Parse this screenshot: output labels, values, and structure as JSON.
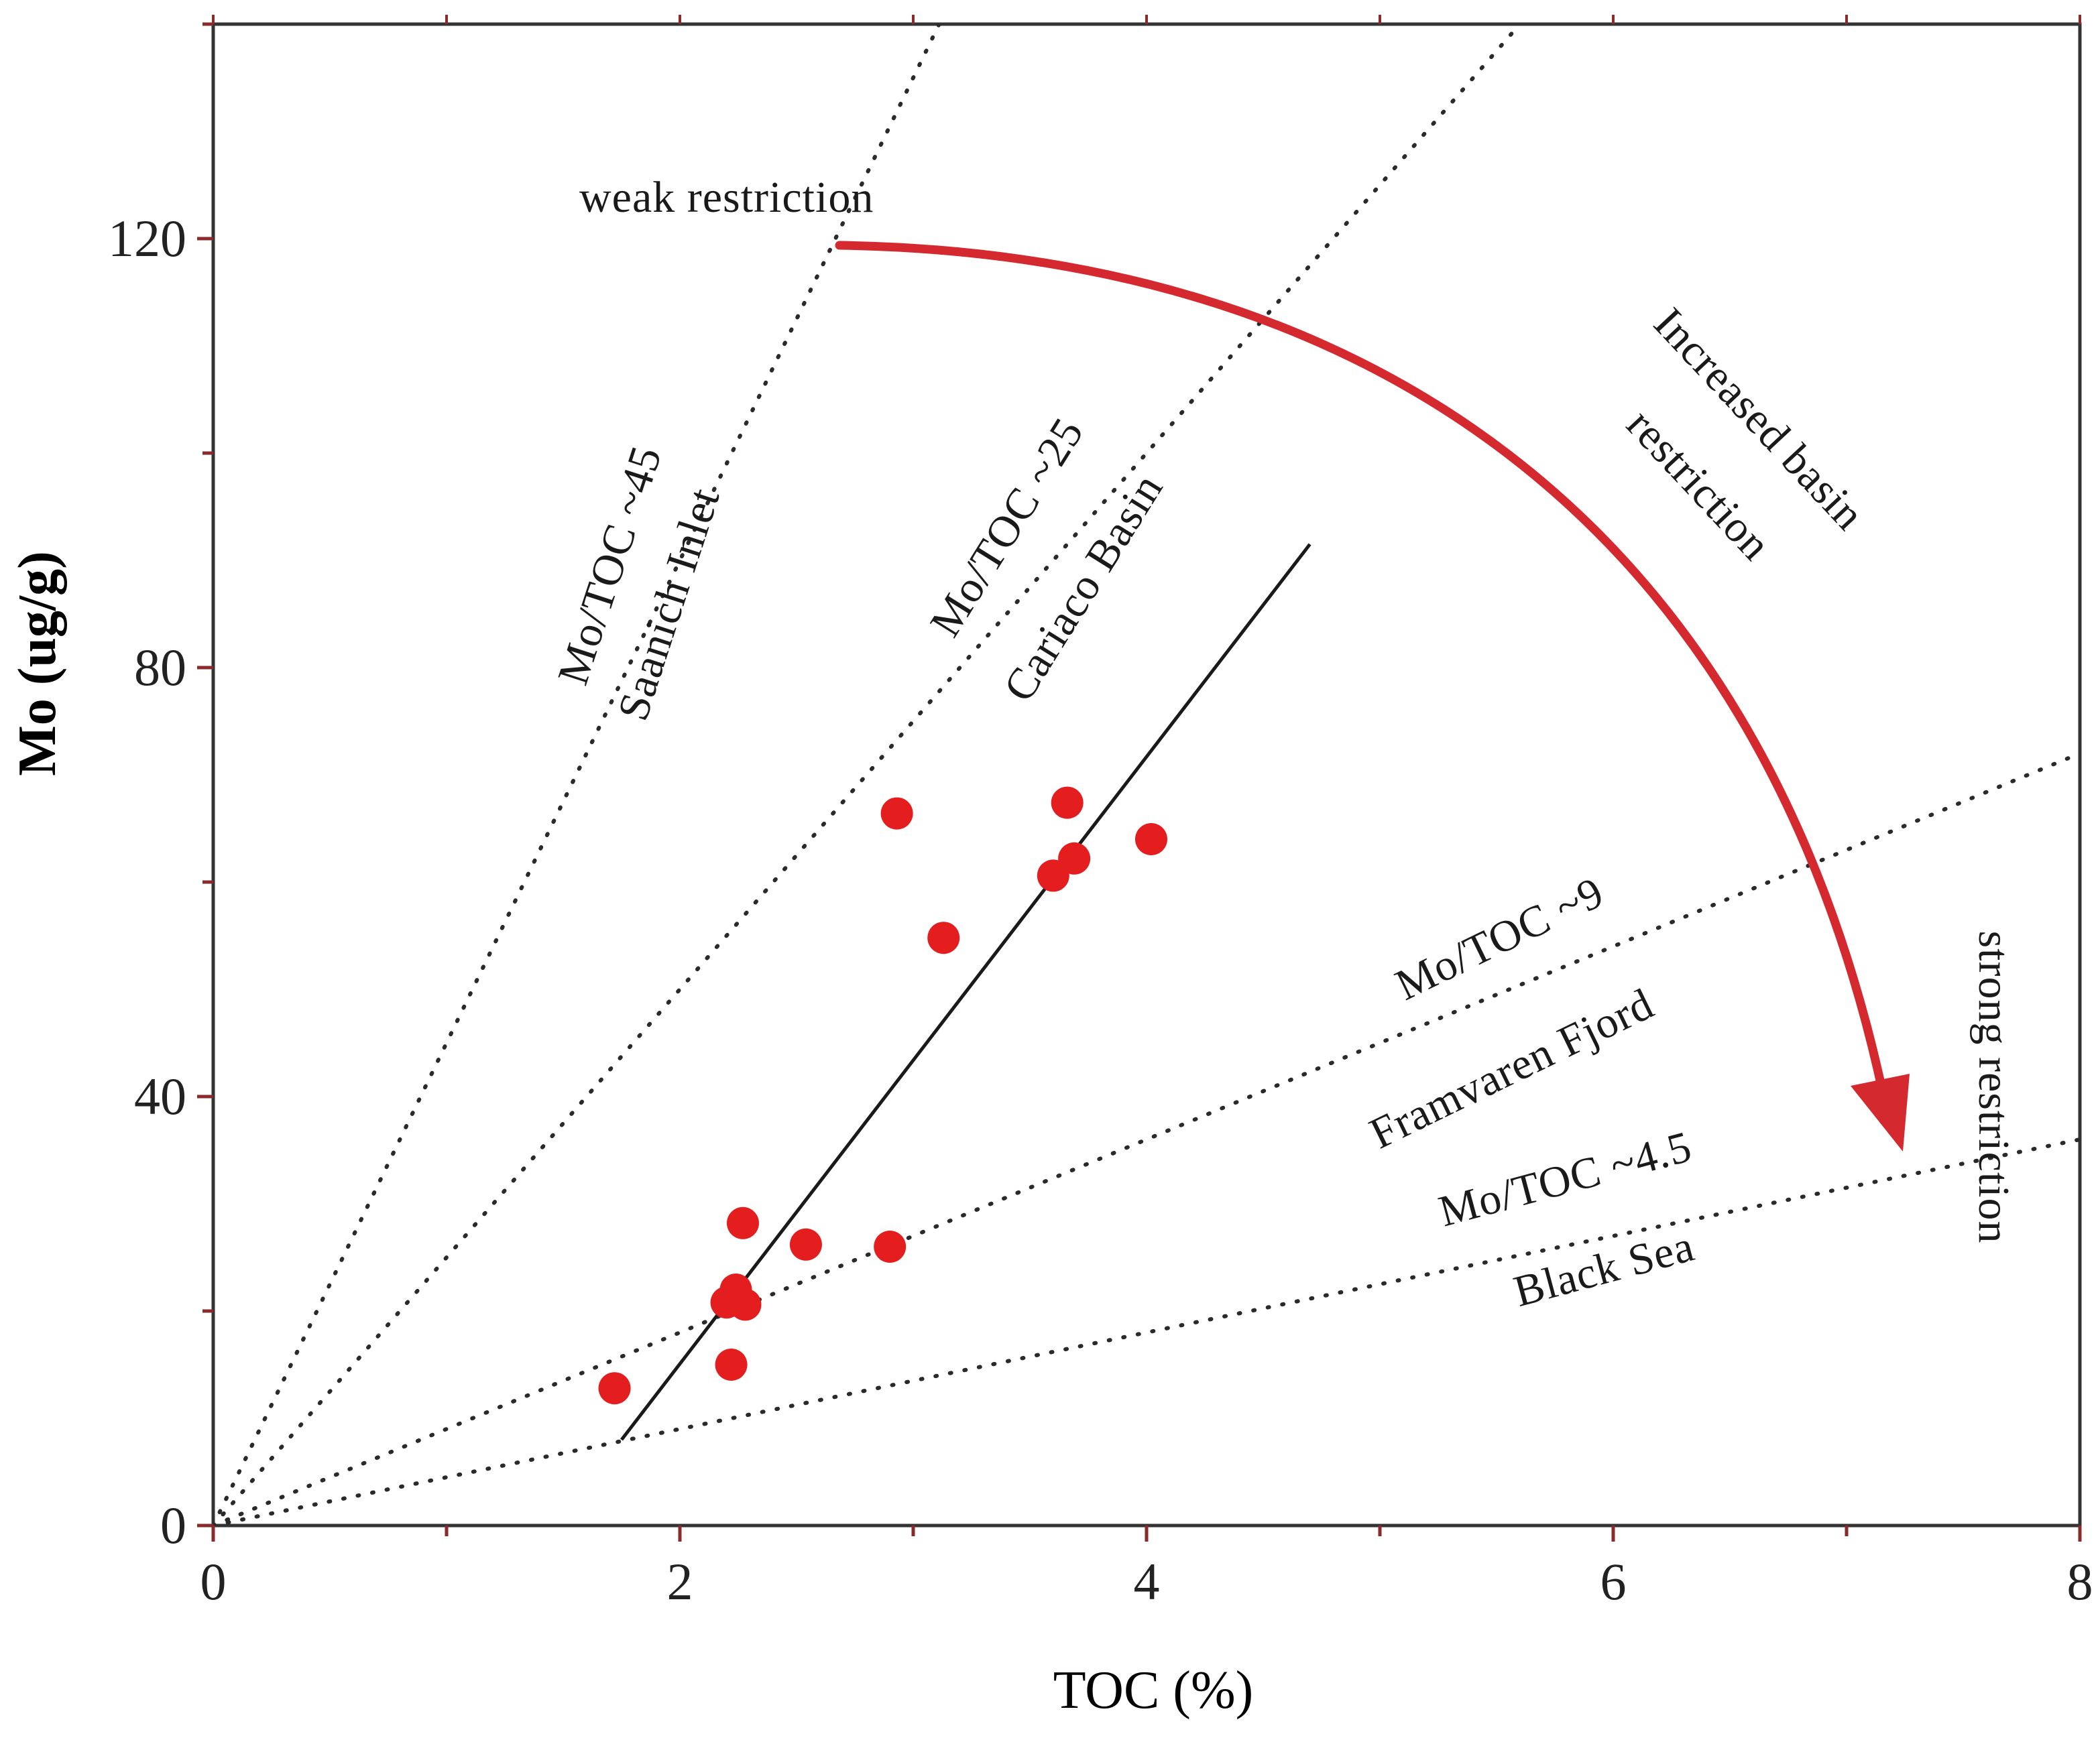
{
  "chart_data": {
    "type": "scatter",
    "xlabel": "TOC (%)",
    "ylabel": "Mo (ug/g)",
    "xlim": [
      0,
      8
    ],
    "ylim": [
      0,
      140
    ],
    "xticks": [
      "0",
      "2",
      "4",
      "6",
      "8"
    ],
    "yticks": [
      "0",
      "40",
      "80",
      "120"
    ],
    "points": [
      {
        "x": 1.72,
        "y": 12.8
      },
      {
        "x": 2.22,
        "y": 15.0
      },
      {
        "x": 2.2,
        "y": 20.8
      },
      {
        "x": 2.24,
        "y": 22.0
      },
      {
        "x": 2.28,
        "y": 20.6
      },
      {
        "x": 2.27,
        "y": 28.2
      },
      {
        "x": 2.54,
        "y": 26.2
      },
      {
        "x": 2.9,
        "y": 26.0
      },
      {
        "x": 2.93,
        "y": 66.4
      },
      {
        "x": 3.13,
        "y": 54.8
      },
      {
        "x": 3.6,
        "y": 60.6
      },
      {
        "x": 3.66,
        "y": 67.4
      },
      {
        "x": 3.69,
        "y": 62.2
      },
      {
        "x": 4.02,
        "y": 64.0
      }
    ],
    "reference_lines": [
      {
        "name": "Mo/TOC ~45",
        "slope": 45,
        "label": "Mo/TOC ~45",
        "sublabel": "Saanich Inlet"
      },
      {
        "name": "Mo/TOC ~25",
        "slope": 25,
        "label": "Mo/TOC ~25",
        "sublabel": "Cariaco Basin"
      },
      {
        "name": "Mo/TOC ~9",
        "slope": 9,
        "label": "Mo/TOC ~9",
        "sublabel": "Framvaren Fjord"
      },
      {
        "name": "Mo/TOC ~4.5",
        "slope": 4.5,
        "label": "Mo/TOC ~4.5",
        "sublabel": "Black Sea"
      }
    ],
    "regression_line": {
      "x": [
        1.75,
        4.7
      ],
      "y": [
        8.0,
        91.5
      ]
    },
    "annotations": {
      "weak": "weak restriction",
      "increased_line1": "Increased basin",
      "increased_line2": "restriction",
      "strong": "strong restriction"
    },
    "colors": {
      "points": "#e41e1e",
      "arrow": "#d42a2f",
      "axis": "#333333",
      "frame_tick": "#8b2a2a"
    }
  }
}
